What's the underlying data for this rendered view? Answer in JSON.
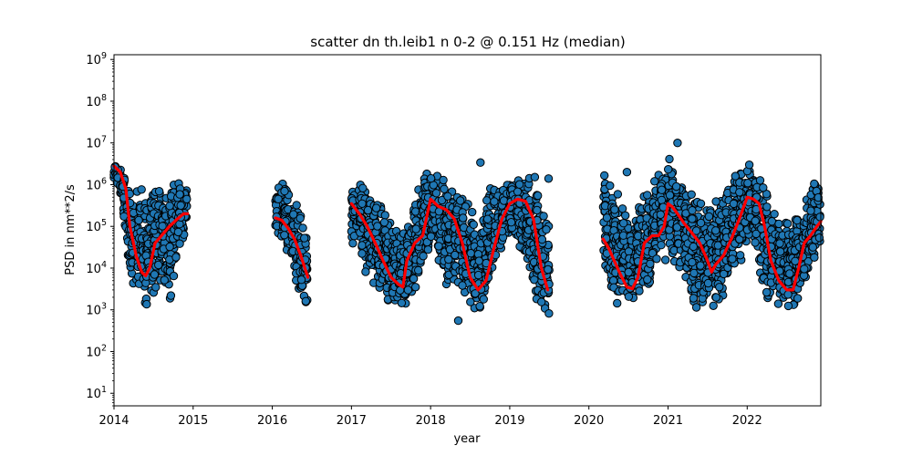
{
  "chart_data": {
    "type": "scatter",
    "title": "scatter dn th.leib1 n 0-2 @ 0.151 Hz (median)",
    "xlabel": "year",
    "ylabel": "PSD in nm**2/s",
    "xlim": [
      2014.0,
      2022.93
    ],
    "ylim": [
      5,
      1300000000.0
    ],
    "yscale": "log",
    "grid": false,
    "x_ticks": [
      "2014",
      "2015",
      "2016",
      "2017",
      "2018",
      "2019",
      "2020",
      "2021",
      "2022"
    ],
    "y_ticks": [
      {
        "base": "10",
        "exp": "1"
      },
      {
        "base": "10",
        "exp": "2"
      },
      {
        "base": "10",
        "exp": "3"
      },
      {
        "base": "10",
        "exp": "4"
      },
      {
        "base": "10",
        "exp": "5"
      },
      {
        "base": "10",
        "exp": "6"
      },
      {
        "base": "10",
        "exp": "7"
      },
      {
        "base": "10",
        "exp": "8"
      },
      {
        "base": "10",
        "exp": "9"
      }
    ],
    "colors": {
      "scatter_fill": "#1f77b4",
      "scatter_edge": "#000000",
      "median_line": "#ff0000"
    },
    "scatter_envelope": {
      "x": [
        2014.0,
        2014.1,
        2014.2,
        2014.3,
        2014.4,
        2014.5,
        2014.6,
        2014.7,
        2014.8,
        2014.92,
        2016.04,
        2016.15,
        2016.25,
        2016.35,
        2016.45,
        2017.0,
        2017.1,
        2017.2,
        2017.3,
        2017.4,
        2017.5,
        2017.6,
        2017.7,
        2017.8,
        2017.9,
        2018.0,
        2018.1,
        2018.2,
        2018.3,
        2018.4,
        2018.5,
        2018.6,
        2018.7,
        2018.8,
        2018.9,
        2019.0,
        2019.1,
        2019.2,
        2019.3,
        2019.4,
        2019.5,
        2020.18,
        2020.3,
        2020.4,
        2020.5,
        2020.6,
        2020.7,
        2020.8,
        2020.9,
        2021.0,
        2021.1,
        2021.2,
        2021.3,
        2021.4,
        2021.5,
        2021.6,
        2021.7,
        2021.8,
        2021.9,
        2022.0,
        2022.1,
        2022.2,
        2022.3,
        2022.4,
        2022.5,
        2022.6,
        2022.7,
        2022.8,
        2022.93
      ],
      "high": [
        4000000.0,
        2500000.0,
        2000000.0,
        800000.0,
        1000000.0,
        1500000.0,
        1000000.0,
        1500000.0,
        2000000.0,
        1000000.0,
        1500000.0,
        1200000.0,
        800000.0,
        300000.0,
        60000.0,
        1000000.0,
        1000000.0,
        1800000.0,
        600000.0,
        300000.0,
        150000.0,
        100000.0,
        100000.0,
        800000.0,
        1500000.0,
        4000000.0,
        2000000.0,
        1500000.0,
        1200000.0,
        1000000.0,
        500000.0,
        100000.0,
        800000.0,
        1500000.0,
        1500000.0,
        2000000.0,
        1500000.0,
        2000000.0,
        3500000.0,
        200000.0,
        200000.0,
        4000000.0,
        1000000.0,
        600000.0,
        200000.0,
        300000.0,
        1000000.0,
        1500000.0,
        2000000.0,
        9000000.0,
        3000000.0,
        1000000.0,
        1000000.0,
        500000.0,
        400000.0,
        400000.0,
        1000000.0,
        2000000.0,
        2500000.0,
        3500000.0,
        4000000.0,
        1500000.0,
        600000.0,
        200000.0,
        200000.0,
        200000.0,
        400000.0,
        1500000.0,
        2500000.0
      ],
      "low": [
        1000000.0,
        400000.0,
        5000.0,
        1500.0,
        800.0,
        2000.0,
        5000.0,
        1000.0,
        10000.0,
        100000.0,
        80000.0,
        30000.0,
        10000.0,
        2000.0,
        800.0,
        40000.0,
        20000.0,
        5000.0,
        2000.0,
        2000.0,
        1000.0,
        800.0,
        1000.0,
        2000.0,
        10000.0,
        30000.0,
        10000.0,
        3000.0,
        3000.0,
        2000.0,
        800.0,
        600.0,
        1000.0,
        5000.0,
        30000.0,
        50000.0,
        30000.0,
        10000.0,
        2000.0,
        600.0,
        400.0,
        10000.0,
        2000.0,
        1000.0,
        1000.0,
        2000.0,
        1500.0,
        2000.0,
        30000.0,
        10000.0,
        5000.0,
        3000.0,
        1000.0,
        1000.0,
        500.0,
        800.0,
        2000.0,
        5000.0,
        8000.0,
        30000.0,
        20000.0,
        2000.0,
        1000.0,
        1000.0,
        700.0,
        800.0,
        1500.0,
        10000.0,
        20000.0
      ]
    },
    "outliers": [
      {
        "x": 2018.35,
        "y": 550
      },
      {
        "x": 2018.63,
        "y": 3400000.0
      },
      {
        "x": 2019.49,
        "y": 1400000.0
      },
      {
        "x": 2020.48,
        "y": 2000000.0
      },
      {
        "x": 2021.12,
        "y": 10000000.0
      },
      {
        "x": 2021.85,
        "y": 1600000.0
      }
    ],
    "median_series": [
      {
        "x": [
          2014.0,
          2014.08,
          2014.15,
          2014.2,
          2014.28,
          2014.35,
          2014.4,
          2014.45,
          2014.52,
          2014.6,
          2014.7,
          2014.8,
          2014.88,
          2014.93
        ],
        "y": [
          2800000.0,
          2000000.0,
          800000.0,
          100000.0,
          20000.0,
          8000.0,
          6500.0,
          10000.0,
          40000.0,
          60000.0,
          100000.0,
          150000.0,
          200000.0,
          200000.0
        ]
      },
      {
        "x": [
          2016.04,
          2016.12,
          2016.2,
          2016.28,
          2016.36,
          2016.45
        ],
        "y": [
          160000.0,
          140000.0,
          90000.0,
          50000.0,
          20000.0,
          6000.0
        ]
      },
      {
        "x": [
          2017.0,
          2017.1,
          2017.2,
          2017.3,
          2017.4,
          2017.5,
          2017.6,
          2017.65,
          2017.7,
          2017.8,
          2017.9,
          2018.0,
          2018.1,
          2018.2,
          2018.3,
          2018.4,
          2018.5,
          2018.6,
          2018.7,
          2018.8,
          2018.9,
          2019.0,
          2019.1,
          2019.2,
          2019.3,
          2019.4,
          2019.48
        ],
        "y": [
          350000.0,
          200000.0,
          100000.0,
          40000.0,
          15000.0,
          6000.0,
          4000.0,
          3500.0,
          15000.0,
          40000.0,
          60000.0,
          450000.0,
          300000.0,
          250000.0,
          150000.0,
          40000.0,
          6000.0,
          3000.0,
          5000.0,
          30000.0,
          150000.0,
          350000.0,
          450000.0,
          400000.0,
          150000.0,
          10000.0,
          3000.0
        ]
      },
      {
        "x": [
          2020.18,
          2020.25,
          2020.32,
          2020.4,
          2020.48,
          2020.55,
          2020.62,
          2020.7,
          2020.8,
          2020.88,
          2020.95,
          2021.0,
          2021.05,
          2021.12,
          2021.2,
          2021.3,
          2021.4,
          2021.5,
          2021.55,
          2021.6,
          2021.7,
          2021.8,
          2021.9,
          2022.0,
          2022.08,
          2022.15,
          2022.22,
          2022.3,
          2022.4,
          2022.5,
          2022.58,
          2022.65,
          2022.72,
          2022.8,
          2022.88,
          2022.93
        ],
        "y": [
          50000.0,
          30000.0,
          15000.0,
          7000.0,
          3500.0,
          3200.0,
          6000.0,
          40000.0,
          60000.0,
          60000.0,
          100000.0,
          350000.0,
          300000.0,
          200000.0,
          120000.0,
          70000.0,
          40000.0,
          15000.0,
          8000.0,
          12000.0,
          20000.0,
          50000.0,
          150000.0,
          500000.0,
          450000.0,
          350000.0,
          100000.0,
          15000.0,
          5000.0,
          3000.0,
          3000.0,
          10000.0,
          40000.0,
          60000.0,
          100000.0,
          130000.0
        ]
      }
    ]
  }
}
